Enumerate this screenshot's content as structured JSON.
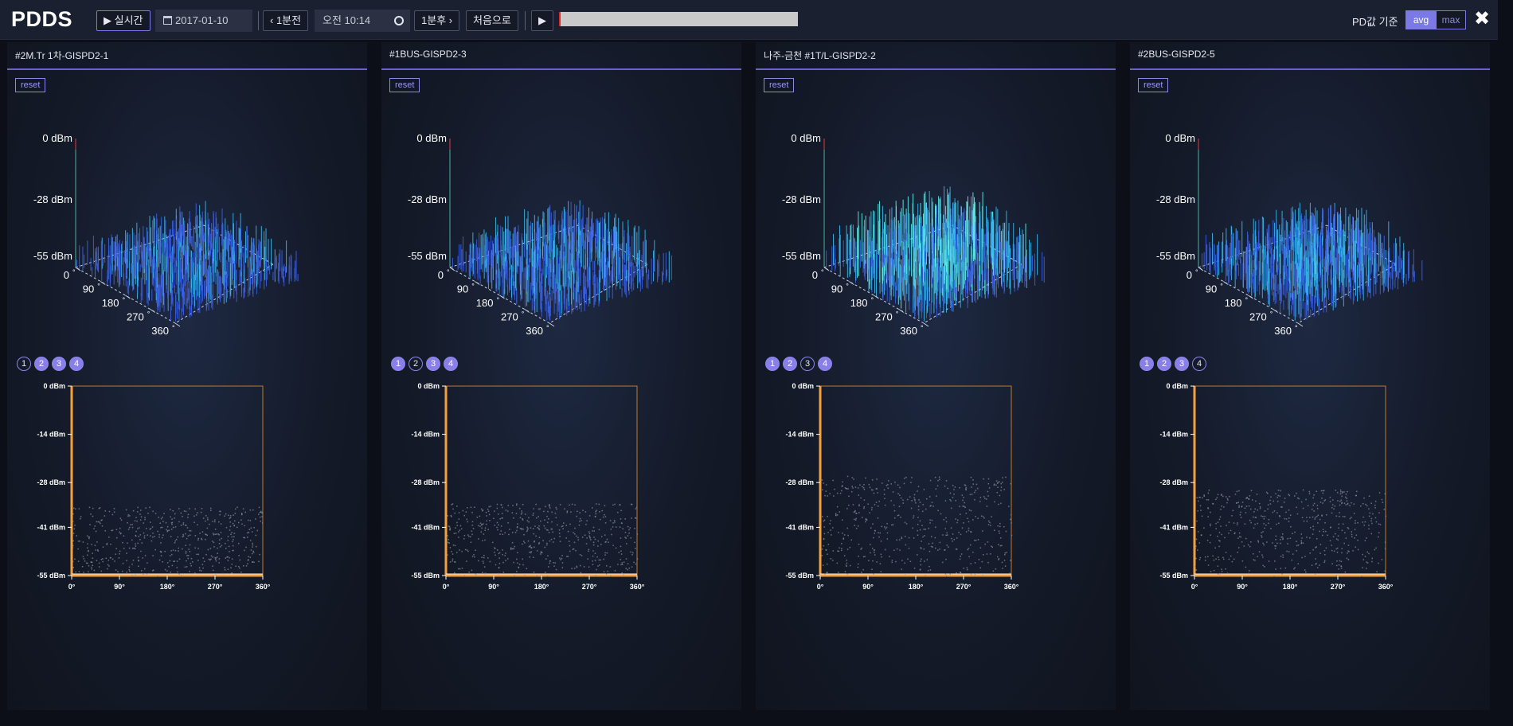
{
  "app": {
    "title": "PDDS"
  },
  "toolbar": {
    "realtime_label": "▶ 실시간",
    "calendar_icon": "calendar-icon",
    "date_value": "2017-01-10",
    "prev_label": "‹ 1분전",
    "time_value": "오전  10:14",
    "clock_icon": "clock-icon",
    "next_label": "1분후 ›",
    "first_label": "처음으로",
    "play_icon": "▶",
    "progress": 0.0,
    "pd_label": "PD값 기준",
    "seg_avg": "avg",
    "seg_max": "max",
    "close_icon": "✖"
  },
  "panel_common": {
    "reset_label": "reset",
    "z_ticks": [
      "0 dBm",
      "-28 dBm",
      "-55 dBm"
    ],
    "phase_ticks": [
      "0 °",
      "90 °",
      "180 °",
      "270 °",
      "360 °"
    ],
    "prpd": {
      "y_ticks": [
        "0 dBm",
        "-14 dBm",
        "-28 dBm",
        "-41 dBm",
        "-55 dBm"
      ],
      "x_ticks": [
        "0°",
        "90°",
        "180°",
        "270°",
        "360°"
      ],
      "ylim": [
        -55,
        0
      ],
      "xlim": [
        0,
        360
      ]
    },
    "accent_color": "#7b79e6",
    "axis_color": "#f0a040"
  },
  "panels": [
    {
      "title": "#2M.Tr 1차-GISPD2-1",
      "channels": [
        {
          "label": "1",
          "on": false
        },
        {
          "label": "2",
          "on": true
        },
        {
          "label": "3",
          "on": true
        },
        {
          "label": "4",
          "on": true
        }
      ],
      "intensity": 0.62,
      "scatter_range_dbm": [
        -55,
        -35
      ]
    },
    {
      "title": "#1BUS-GISPD2-3",
      "channels": [
        {
          "label": "1",
          "on": true
        },
        {
          "label": "2",
          "on": false
        },
        {
          "label": "3",
          "on": true
        },
        {
          "label": "4",
          "on": true
        }
      ],
      "intensity": 0.66,
      "scatter_range_dbm": [
        -55,
        -34
      ]
    },
    {
      "title": "나주-금천 #1T/L-GISPD2-2",
      "channels": [
        {
          "label": "1",
          "on": true
        },
        {
          "label": "2",
          "on": true
        },
        {
          "label": "3",
          "on": false
        },
        {
          "label": "4",
          "on": true
        }
      ],
      "intensity": 0.92,
      "scatter_range_dbm": [
        -55,
        -26
      ]
    },
    {
      "title": "#2BUS-GISPD2-5",
      "channels": [
        {
          "label": "1",
          "on": true
        },
        {
          "label": "2",
          "on": true
        },
        {
          "label": "3",
          "on": true
        },
        {
          "label": "4",
          "on": false
        }
      ],
      "intensity": 0.68,
      "scatter_range_dbm": [
        -55,
        -30
      ]
    }
  ]
}
